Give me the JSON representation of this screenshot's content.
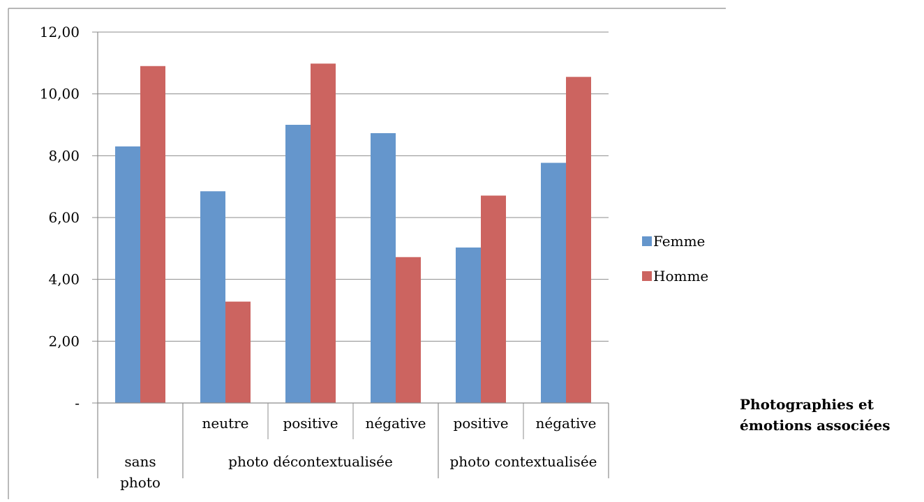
{
  "chart_data": {
    "type": "bar",
    "xlabel": "Photographies et émotions associées",
    "xlabel_lines": [
      "Photographies et",
      "émotions associées"
    ],
    "ylabel": "",
    "ylim": [
      0,
      12
    ],
    "ytick_values": [
      0,
      2,
      4,
      6,
      8,
      10,
      12
    ],
    "ytick_labels": [
      "-",
      "2,00",
      "4,00",
      "6,00",
      "8,00",
      "10,00",
      "12,00"
    ],
    "grid": true,
    "legend_position": "right",
    "categories": [
      "sans photo",
      "neutre",
      "positive",
      "négative",
      "positive",
      "négative"
    ],
    "category_groups": [
      {
        "label_lines": [
          "sans",
          "photo"
        ],
        "categories": [
          0
        ]
      },
      {
        "label_lines": [
          "photo décontextualisée"
        ],
        "categories": [
          1,
          2,
          3
        ]
      },
      {
        "label_lines": [
          "photo contextualisée"
        ],
        "categories": [
          4,
          5
        ]
      }
    ],
    "series": [
      {
        "name": "Femme",
        "color": "#6596cc",
        "values": [
          8.3,
          6.85,
          9.0,
          8.73,
          5.03,
          7.77
        ]
      },
      {
        "name": "Homme",
        "color": "#cc6460",
        "values": [
          10.9,
          3.28,
          10.98,
          4.72,
          6.71,
          10.55
        ]
      }
    ]
  }
}
